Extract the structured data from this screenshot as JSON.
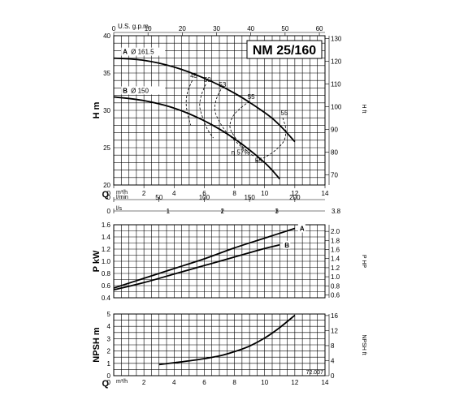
{
  "chart_data": [
    {
      "type": "line",
      "title": "NM 25/160",
      "ylabel": "H m",
      "ylabel_right": "H ft",
      "xlabel": "Q",
      "top_axis_label": "U.S. g.p.m.",
      "xlim": [
        0,
        14
      ],
      "ylim": [
        20,
        40
      ],
      "x_ticks": [
        0,
        2,
        4,
        6,
        8,
        10,
        12,
        14
      ],
      "y_ticks": [
        20,
        25,
        30,
        35,
        40
      ],
      "top_axis_ticks": [
        0,
        10,
        20,
        30,
        40,
        50,
        60
      ],
      "right_axis_ticks": [
        70,
        80,
        90,
        100,
        110,
        120,
        130
      ],
      "secondary_axes": [
        {
          "label": "l/min",
          "ticks": [
            0,
            50,
            100,
            150,
            200
          ]
        },
        {
          "label": "l/s",
          "ticks": [
            0,
            1,
            2,
            3
          ],
          "extra_tick": "3.8"
        }
      ],
      "unit_label": "m³/h",
      "series": [
        {
          "name": "A",
          "diameter_label": "Ø 161.5",
          "x": [
            0,
            2,
            4,
            6,
            8,
            10,
            11,
            12
          ],
          "y": [
            37,
            36.7,
            35.8,
            34.3,
            32.3,
            29.7,
            28,
            25.8
          ]
        },
        {
          "name": "B",
          "diameter_label": "Ø 150",
          "x": [
            0,
            2,
            4,
            6,
            8,
            10,
            11
          ],
          "y": [
            31.8,
            31.3,
            30.3,
            28.6,
            26.2,
            23,
            20.8
          ]
        }
      ],
      "efficiency_curves": [
        {
          "label": "45",
          "x": [
            5.2,
            4.9,
            4.8,
            4.9,
            5.1
          ],
          "y": [
            34.0,
            32.5,
            31.0,
            29.5,
            28.0
          ]
        },
        {
          "label": "50",
          "x": [
            6.1,
            5.8,
            5.7,
            5.9,
            6.2,
            6.6
          ],
          "y": [
            33.5,
            32.0,
            30.5,
            29.0,
            27.5,
            26.3
          ]
        },
        {
          "label": "53",
          "x": [
            7.1,
            6.8,
            6.7,
            7.0,
            7.5,
            8.2,
            8.6
          ],
          "y": [
            32.8,
            31.5,
            30.0,
            28.5,
            27.0,
            25.6,
            24.8
          ]
        },
        {
          "label": "55",
          "x": [
            9.0,
            8.4,
            7.9,
            7.7,
            8.0,
            8.6,
            9.3
          ],
          "y": [
            31.2,
            30.3,
            29.2,
            27.8,
            26.5,
            25.0,
            23.8
          ]
        },
        {
          "label": "55",
          "x": [
            11.2,
            11.4,
            11.3,
            10.8,
            10.1,
            9.4
          ],
          "y": [
            29.0,
            27.5,
            26.0,
            24.8,
            23.8,
            23.2
          ]
        }
      ],
      "annotations": [
        "η 57%",
        "55",
        "55"
      ]
    },
    {
      "type": "line",
      "ylabel": "P kW",
      "ylabel_right": "P HP",
      "xlim": [
        0,
        14
      ],
      "ylim": [
        0.4,
        1.6
      ],
      "y_ticks": [
        0.4,
        0.6,
        0.8,
        1.0,
        1.2,
        1.4,
        1.6
      ],
      "right_axis_ticks": [
        "0.6",
        "0.8",
        "1.0",
        "1.2",
        "1.4",
        "1.6",
        "1.8",
        "2.0"
      ],
      "series": [
        {
          "name": "A",
          "x": [
            0,
            2,
            4,
            6,
            8,
            10,
            12
          ],
          "y": [
            0.56,
            0.72,
            0.88,
            1.04,
            1.22,
            1.38,
            1.54
          ]
        },
        {
          "name": "B",
          "x": [
            0,
            2,
            4,
            6,
            8,
            10,
            11
          ],
          "y": [
            0.53,
            0.65,
            0.79,
            0.93,
            1.07,
            1.21,
            1.27
          ]
        }
      ]
    },
    {
      "type": "line",
      "ylabel": "NPSH m",
      "ylabel_right": "NPSH ft",
      "xlabel": "Q",
      "unit_label": "m³/h",
      "xlim": [
        0,
        14
      ],
      "ylim": [
        0,
        5
      ],
      "x_ticks": [
        0,
        2,
        4,
        6,
        8,
        10,
        12,
        14
      ],
      "y_ticks": [
        0,
        1,
        2,
        3,
        4,
        5
      ],
      "right_axis_ticks": [
        0,
        4,
        8,
        12,
        16
      ],
      "footnote": "72.007",
      "series": [
        {
          "x": [
            3,
            4,
            5,
            6,
            7,
            8,
            9,
            10,
            11,
            12
          ],
          "y": [
            0.9,
            1.05,
            1.2,
            1.38,
            1.6,
            1.95,
            2.4,
            3.05,
            3.9,
            4.9
          ]
        }
      ]
    }
  ]
}
